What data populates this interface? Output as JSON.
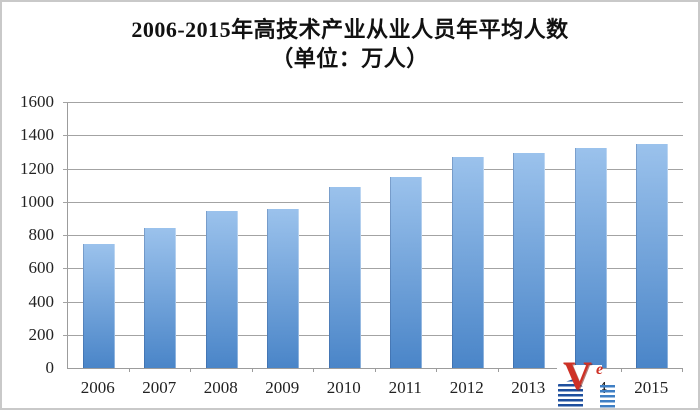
{
  "page": {
    "background": "#ffffff",
    "border_color": "#c9c9c9"
  },
  "chart_data": {
    "type": "bar",
    "title": "2006-2015年高技术产业从业人员年平均人数",
    "subtitle": "（单位：万人）",
    "categories": [
      "2006",
      "2007",
      "2008",
      "2009",
      "2010",
      "2011",
      "2012",
      "2013",
      "2014",
      "2015"
    ],
    "values": [
      744,
      844,
      945,
      958,
      1091,
      1147,
      1267,
      1294,
      1322,
      1350
    ],
    "xlabel": "",
    "ylabel": "",
    "ylim": [
      0,
      1600
    ],
    "ytick_step": 200,
    "yticks": [
      0,
      200,
      400,
      600,
      800,
      1000,
      1200,
      1400,
      1600
    ],
    "grid": true,
    "legend_position": "none",
    "colors": {
      "bar_top": "#9bc2ec",
      "bar_bottom": "#4a85c8",
      "gridline": "#a3a3a3",
      "axis": "#9c9c9c",
      "text": "#1d1d1d"
    }
  },
  "watermark": {
    "letter_v": "V",
    "letter_e": "e",
    "red": "#ce3126",
    "blue_dark": "#1e4f9e",
    "blue_light": "#3f7fc4"
  }
}
